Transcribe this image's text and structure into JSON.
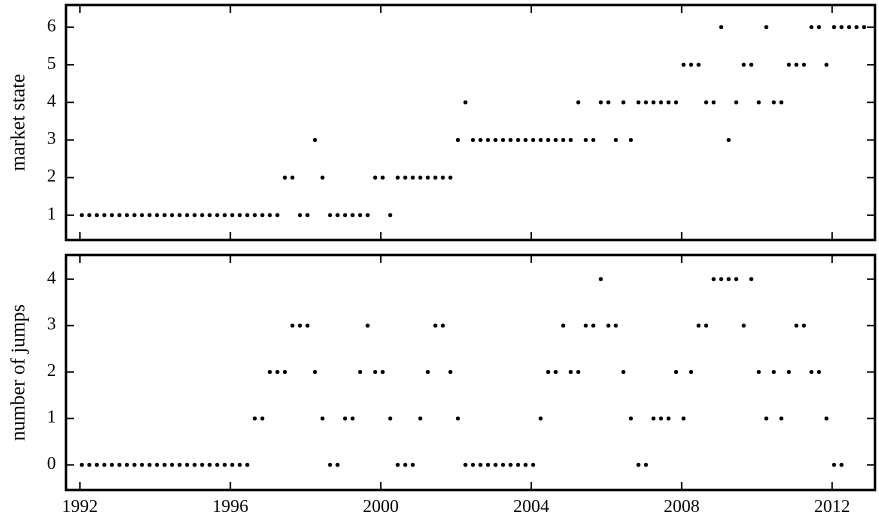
{
  "chart_data": [
    {
      "type": "scatter",
      "ylabel": "market  state",
      "color": "#000000",
      "x": [
        1992.05,
        1992.25,
        1992.45,
        1992.65,
        1992.85,
        1993.05,
        1993.25,
        1993.45,
        1993.65,
        1993.85,
        1994.05,
        1994.25,
        1994.45,
        1994.65,
        1994.85,
        1995.05,
        1995.25,
        1995.45,
        1995.65,
        1995.85,
        1996.05,
        1996.25,
        1996.45,
        1996.65,
        1996.85,
        1997.05,
        1997.25,
        1997.45,
        1997.65,
        1997.85,
        1998.05,
        1998.25,
        1998.45,
        1998.65,
        1998.85,
        1999.05,
        1999.25,
        1999.45,
        1999.65,
        1999.85,
        2000.05,
        2000.25,
        2000.45,
        2000.65,
        2000.85,
        2001.05,
        2001.25,
        2001.45,
        2001.65,
        2001.85,
        2002.05,
        2002.25,
        2002.45,
        2002.65,
        2002.85,
        2003.05,
        2003.25,
        2003.45,
        2003.65,
        2003.85,
        2004.05,
        2004.25,
        2004.45,
        2004.65,
        2004.85,
        2005.05,
        2005.25,
        2005.45,
        2005.65,
        2005.85,
        2006.05,
        2006.25,
        2006.45,
        2006.65,
        2006.85,
        2007.05,
        2007.25,
        2007.45,
        2007.65,
        2007.85,
        2008.05,
        2008.25,
        2008.45,
        2008.65,
        2008.85,
        2009.05,
        2009.25,
        2009.45,
        2009.65,
        2009.85,
        2010.05,
        2010.25,
        2010.45,
        2010.65,
        2010.85,
        2011.05,
        2011.25,
        2011.45,
        2011.65,
        2011.85,
        2012.05,
        2012.25,
        2012.45,
        2012.65,
        2012.85
      ],
      "values": [
        1,
        1,
        1,
        1,
        1,
        1,
        1,
        1,
        1,
        1,
        1,
        1,
        1,
        1,
        1,
        1,
        1,
        1,
        1,
        1,
        1,
        1,
        1,
        1,
        1,
        1,
        1,
        2,
        2,
        1,
        1,
        3,
        2,
        1,
        1,
        1,
        1,
        1,
        1,
        2,
        2,
        1,
        2,
        2,
        2,
        2,
        2,
        2,
        2,
        2,
        3,
        4,
        3,
        3,
        3,
        3,
        3,
        3,
        3,
        3,
        3,
        3,
        3,
        3,
        3,
        3,
        4,
        3,
        3,
        4,
        4,
        3,
        4,
        3,
        4,
        4,
        4,
        4,
        4,
        4,
        5,
        5,
        5,
        4,
        4,
        6,
        3,
        4,
        5,
        5,
        4,
        6,
        4,
        4,
        5,
        5,
        5,
        6,
        6,
        5,
        6,
        6,
        6,
        6,
        6
      ],
      "xlim": [
        1991.63,
        2013.14
      ],
      "xticks": [
        1992,
        1996,
        2000,
        2004,
        2008,
        2012
      ],
      "ylim": [
        0.34,
        6.59
      ],
      "yticks": [
        1,
        2,
        3,
        4,
        5,
        6
      ]
    },
    {
      "type": "scatter",
      "ylabel": "number of jumps",
      "color": "#000000",
      "x": [
        1992.05,
        1992.25,
        1992.45,
        1992.65,
        1992.85,
        1993.05,
        1993.25,
        1993.45,
        1993.65,
        1993.85,
        1994.05,
        1994.25,
        1994.45,
        1994.65,
        1994.85,
        1995.05,
        1995.25,
        1995.45,
        1995.65,
        1995.85,
        1996.05,
        1996.25,
        1996.45,
        1996.65,
        1996.85,
        1997.05,
        1997.25,
        1997.45,
        1997.65,
        1997.85,
        1998.05,
        1998.25,
        1998.45,
        1998.65,
        1998.85,
        1999.05,
        1999.25,
        1999.45,
        1999.65,
        1999.85,
        2000.05,
        2000.25,
        2000.45,
        2000.65,
        2000.85,
        2001.05,
        2001.25,
        2001.45,
        2001.65,
        2001.85,
        2002.05,
        2002.25,
        2002.45,
        2002.65,
        2002.85,
        2003.05,
        2003.25,
        2003.45,
        2003.65,
        2003.85,
        2004.05,
        2004.25,
        2004.45,
        2004.65,
        2004.85,
        2005.05,
        2005.25,
        2005.45,
        2005.65,
        2005.85,
        2006.05,
        2006.25,
        2006.45,
        2006.65,
        2006.85,
        2007.05,
        2007.25,
        2007.45,
        2007.65,
        2007.85,
        2008.05,
        2008.25,
        2008.45,
        2008.65,
        2008.85,
        2009.05,
        2009.25,
        2009.45,
        2009.65,
        2009.85,
        2010.05,
        2010.25,
        2010.45,
        2010.65,
        2010.85,
        2011.05,
        2011.25,
        2011.45,
        2011.65,
        2011.85,
        2012.05,
        2012.25
      ],
      "values": [
        0,
        0,
        0,
        0,
        0,
        0,
        0,
        0,
        0,
        0,
        0,
        0,
        0,
        0,
        0,
        0,
        0,
        0,
        0,
        0,
        0,
        0,
        0,
        1,
        1,
        2,
        2,
        2,
        3,
        3,
        3,
        2,
        1,
        0,
        0,
        1,
        1,
        2,
        3,
        2,
        2,
        1,
        0,
        0,
        0,
        1,
        2,
        3,
        3,
        2,
        1,
        0,
        0,
        0,
        0,
        0,
        0,
        0,
        0,
        0,
        0,
        1,
        2,
        2,
        3,
        2,
        2,
        3,
        3,
        4,
        3,
        3,
        2,
        1,
        0,
        0,
        1,
        1,
        1,
        2,
        1,
        2,
        3,
        3,
        4,
        4,
        4,
        4,
        3,
        4,
        2,
        1,
        2,
        1,
        2,
        3,
        3,
        2,
        2,
        1,
        0,
        0
      ],
      "xlim": [
        1991.63,
        2013.14
      ],
      "xticks": [
        1992,
        1996,
        2000,
        2004,
        2008,
        2012
      ],
      "ylim": [
        -0.54,
        4.52
      ],
      "yticks": [
        0,
        1,
        2,
        3,
        4
      ]
    }
  ]
}
